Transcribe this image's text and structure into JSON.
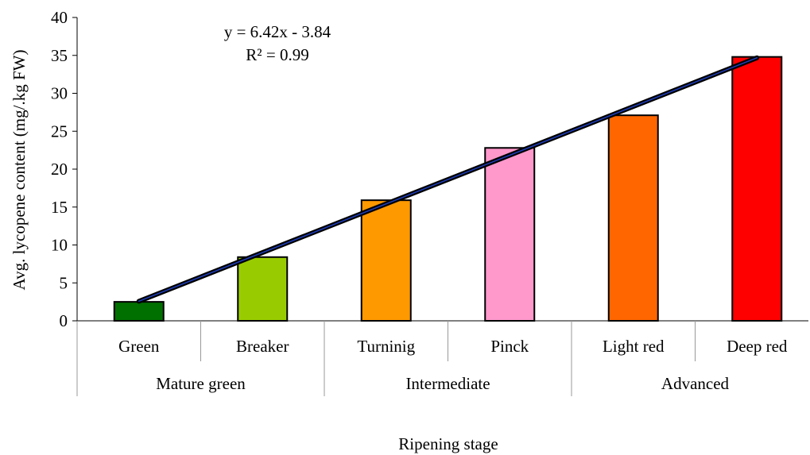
{
  "chart_data": {
    "type": "bar",
    "categories": [
      "Green",
      "Breaker",
      "Turninig",
      "Pinck",
      "Light red",
      "Deep red"
    ],
    "groups": [
      {
        "label": "Mature green",
        "categories": [
          "Green",
          "Breaker"
        ]
      },
      {
        "label": "Intermediate",
        "categories": [
          "Turninig",
          "Pinck"
        ]
      },
      {
        "label": "Advanced",
        "categories": [
          "Light red",
          "Deep red"
        ]
      }
    ],
    "values": [
      2.5,
      8.4,
      15.9,
      22.8,
      27.1,
      34.8
    ],
    "colors": [
      "#007000",
      "#99cc00",
      "#ff9900",
      "#ff99cc",
      "#ff6600",
      "#ff0000"
    ],
    "ylim": [
      0,
      40
    ],
    "yticks": [
      0,
      5,
      10,
      15,
      20,
      25,
      30,
      35,
      40
    ],
    "ylabel": "Avg. lycopene content (mg/.kg FW)",
    "xlabel": "Ripening stage",
    "trendline": {
      "type": "linear",
      "slope": 6.42,
      "intercept": -3.84,
      "equation": "y = 6.42x - 3.84",
      "r_squared": "R² = 0.99",
      "color": "#000000",
      "highlight": "#1f3fbf"
    },
    "grid": false,
    "legend": "none"
  }
}
